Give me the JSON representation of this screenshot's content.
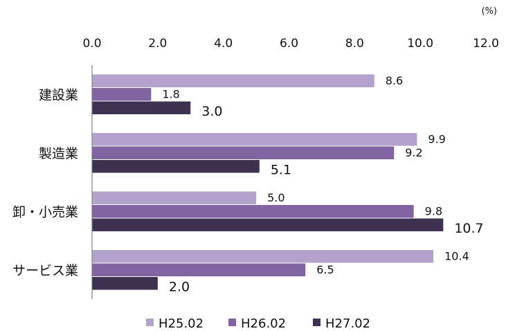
{
  "chart_data": {
    "type": "bar",
    "orientation": "horizontal",
    "unit": "(%)",
    "categories": [
      "建設業",
      "製造業",
      "卸・小売業",
      "サービス業"
    ],
    "series": [
      {
        "name": "H25.02",
        "color": "#b3a2cc",
        "values": [
          8.6,
          9.9,
          5.0,
          10.4
        ]
      },
      {
        "name": "H26.02",
        "color": "#8064a2",
        "values": [
          1.8,
          9.2,
          9.8,
          6.5
        ]
      },
      {
        "name": "H27.02",
        "color": "#3f3151",
        "values": [
          3.0,
          5.1,
          10.7,
          2.0
        ]
      }
    ],
    "xlim": [
      0,
      12
    ],
    "xticks": [
      "0.0",
      "2.0",
      "4.0",
      "6.0",
      "8.0",
      "10.0",
      "12.0"
    ],
    "axis_position": "top",
    "legend": "bottom",
    "grid": false
  }
}
